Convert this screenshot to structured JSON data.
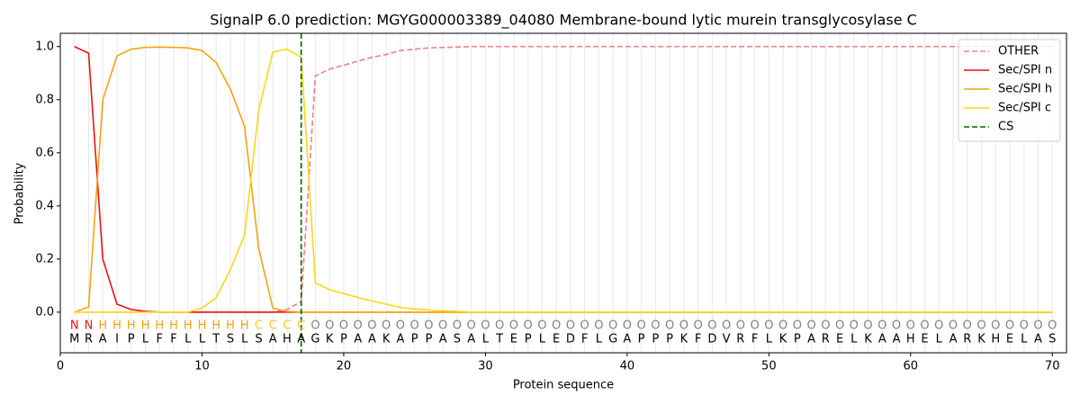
{
  "chart_data": {
    "type": "line",
    "title": "SignalP 6.0 prediction: MGYG000003389_04080 Membrane-bound lytic murein transglycosylase C",
    "x_label": "Protein sequence",
    "y_label": "Probability",
    "x": [
      1,
      2,
      3,
      4,
      5,
      6,
      7,
      8,
      9,
      10,
      11,
      12,
      13,
      14,
      15,
      16,
      17,
      18,
      19,
      20,
      21,
      22,
      23,
      24,
      25,
      26,
      27,
      28,
      29,
      30,
      31,
      32,
      33,
      34,
      35,
      36,
      37,
      38,
      39,
      40,
      41,
      42,
      43,
      44,
      45,
      46,
      47,
      48,
      49,
      50,
      51,
      52,
      53,
      54,
      55,
      56,
      57,
      58,
      59,
      60,
      61,
      62,
      63,
      64,
      65,
      66,
      67,
      68,
      69,
      70
    ],
    "series": [
      {
        "name": "OTHER",
        "color": "#f08080",
        "dashed": true,
        "values": [
          0,
          0,
          0,
          0,
          0,
          0,
          0,
          0,
          0,
          0,
          0,
          0,
          0,
          0,
          0,
          0.01,
          0.04,
          0.89,
          0.915,
          0.93,
          0.945,
          0.96,
          0.97,
          0.985,
          0.99,
          0.995,
          0.997,
          0.998,
          1,
          1,
          1,
          1,
          1,
          1,
          1,
          1,
          1,
          1,
          1,
          1,
          1,
          1,
          1,
          1,
          1,
          1,
          1,
          1,
          1,
          1,
          1,
          1,
          1,
          1,
          1,
          1,
          1,
          1,
          1,
          1,
          1,
          1,
          1,
          1,
          1,
          1,
          1,
          1,
          1,
          1
        ]
      },
      {
        "name": "Sec/SPI n",
        "color": "#ee1111",
        "values": [
          1,
          0.975,
          0.2,
          0.03,
          0.01,
          0.003,
          0,
          0,
          0,
          0,
          0,
          0,
          0,
          0,
          0,
          0,
          0,
          0,
          0,
          0,
          0,
          0,
          0,
          0,
          0,
          0,
          0,
          0,
          0,
          0,
          0,
          0,
          0,
          0,
          0,
          0,
          0,
          0,
          0,
          0,
          0,
          0,
          0,
          0,
          0,
          0,
          0,
          0,
          0,
          0,
          0,
          0,
          0,
          0,
          0,
          0,
          0,
          0,
          0,
          0,
          0,
          0,
          0,
          0,
          0,
          0,
          0,
          0,
          0,
          0
        ]
      },
      {
        "name": "Sec/SPI h",
        "color": "#f5a20f",
        "values": [
          0,
          0.02,
          0.8,
          0.965,
          0.99,
          0.997,
          0.998,
          0.997,
          0.995,
          0.985,
          0.94,
          0.84,
          0.7,
          0.24,
          0.015,
          0.003,
          0,
          0,
          0,
          0,
          0,
          0,
          0,
          0,
          0,
          0,
          0,
          0,
          0,
          0,
          0,
          0,
          0,
          0,
          0,
          0,
          0,
          0,
          0,
          0,
          0,
          0,
          0,
          0,
          0,
          0,
          0,
          0,
          0,
          0,
          0,
          0,
          0,
          0,
          0,
          0,
          0,
          0,
          0,
          0,
          0,
          0,
          0,
          0,
          0,
          0,
          0,
          0,
          0,
          0
        ]
      },
      {
        "name": "Sec/SPI c",
        "color": "#fcd714",
        "values": [
          0,
          0,
          0,
          0,
          0,
          0,
          0,
          0,
          0,
          0.015,
          0.055,
          0.16,
          0.29,
          0.76,
          0.98,
          0.99,
          0.96,
          0.11,
          0.085,
          0.07,
          0.055,
          0.042,
          0.03,
          0.018,
          0.012,
          0.008,
          0.005,
          0.003,
          0,
          0,
          0,
          0,
          0,
          0,
          0,
          0,
          0,
          0,
          0,
          0,
          0,
          0,
          0,
          0,
          0,
          0,
          0,
          0,
          0,
          0,
          0,
          0,
          0,
          0,
          0,
          0,
          0,
          0,
          0,
          0,
          0,
          0,
          0,
          0,
          0,
          0,
          0,
          0,
          0,
          0
        ]
      }
    ],
    "cs_line": {
      "name": "CS",
      "x": 17,
      "color": "#006400"
    },
    "labels": [
      "N",
      "N",
      "H",
      "H",
      "H",
      "H",
      "H",
      "H",
      "H",
      "H",
      "H",
      "H",
      "H",
      "C",
      "C",
      "C",
      "C",
      "O",
      "O",
      "O",
      "O",
      "O",
      "O",
      "O",
      "O",
      "O",
      "O",
      "O",
      "O",
      "O",
      "O",
      "O",
      "O",
      "O",
      "O",
      "O",
      "O",
      "O",
      "O",
      "O",
      "O",
      "O",
      "O",
      "O",
      "O",
      "O",
      "O",
      "O",
      "O",
      "O",
      "O",
      "O",
      "O",
      "O",
      "O",
      "O",
      "O",
      "O",
      "O",
      "O",
      "O",
      "O",
      "O",
      "O",
      "O",
      "O",
      "O",
      "O",
      "O",
      "O"
    ],
    "label_colors": {
      "N": "#ee1111",
      "H": "#f5a20f",
      "C": "#fcc814",
      "O": "#808080"
    },
    "sequence": [
      "M",
      "R",
      "A",
      "I",
      "P",
      "L",
      "F",
      "F",
      "L",
      "L",
      "T",
      "S",
      "L",
      "S",
      "A",
      "H",
      "A",
      "G",
      "K",
      "P",
      "A",
      "A",
      "K",
      "A",
      "P",
      "P",
      "A",
      "S",
      "A",
      "L",
      "T",
      "E",
      "P",
      "L",
      "E",
      "D",
      "F",
      "L",
      "G",
      "A",
      "P",
      "P",
      "P",
      "K",
      "F",
      "D",
      "V",
      "R",
      "F",
      "L",
      "K",
      "P",
      "A",
      "R",
      "E",
      "L",
      "K",
      "A",
      "A",
      "H",
      "E",
      "L",
      "A",
      "R",
      "K",
      "H",
      "E",
      "L",
      "A",
      "S"
    ],
    "xlim": [
      0,
      71
    ],
    "ylim": [
      -0.153,
      1.05
    ],
    "xticks": [
      0,
      10,
      20,
      30,
      40,
      50,
      60,
      70
    ],
    "yticks": [
      {
        "value": 0,
        "label": "0.0"
      },
      0.2,
      0.4,
      0.6,
      0.8,
      {
        "value": 1,
        "label": "1.0"
      }
    ],
    "legend": "upper right"
  }
}
